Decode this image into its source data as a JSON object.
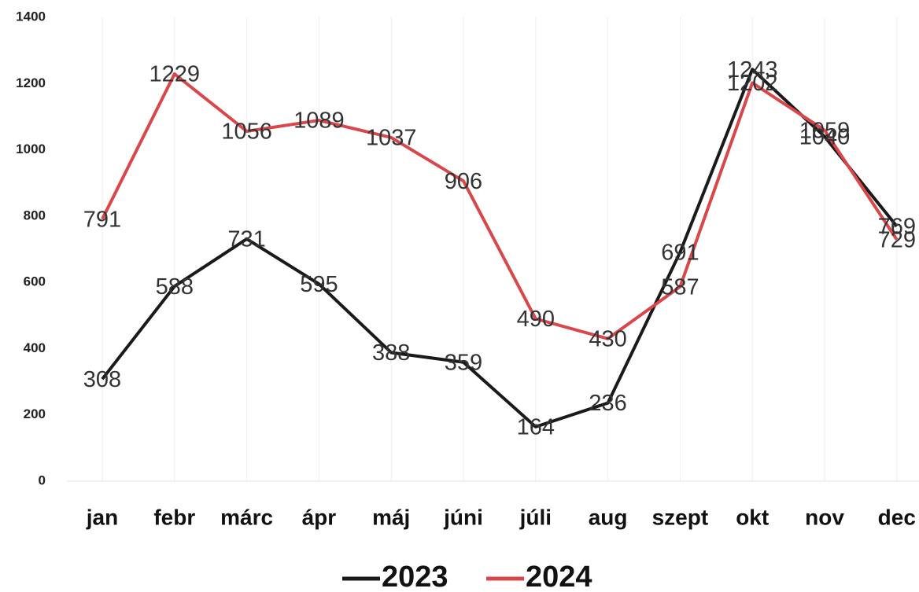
{
  "chart_data": {
    "type": "line",
    "categories": [
      "jan",
      "febr",
      "márc",
      "ápr",
      "máj",
      "júni",
      "júli",
      "aug",
      "szept",
      "okt",
      "nov",
      "dec"
    ],
    "series": [
      {
        "name": "2023",
        "color": "#1a1a1a",
        "values": [
          308,
          588,
          731,
          595,
          388,
          359,
          164,
          236,
          691,
          1243,
          1040,
          769
        ]
      },
      {
        "name": "2024",
        "color": "#d9474b",
        "values": [
          791,
          1229,
          1056,
          1089,
          1037,
          906,
          490,
          430,
          587,
          1202,
          1059,
          729
        ]
      }
    ],
    "ylim": [
      0,
      1400
    ],
    "yticks": [
      0,
      200,
      400,
      600,
      800,
      1000,
      1200,
      1400
    ],
    "grid": true,
    "legend": "bottom"
  }
}
